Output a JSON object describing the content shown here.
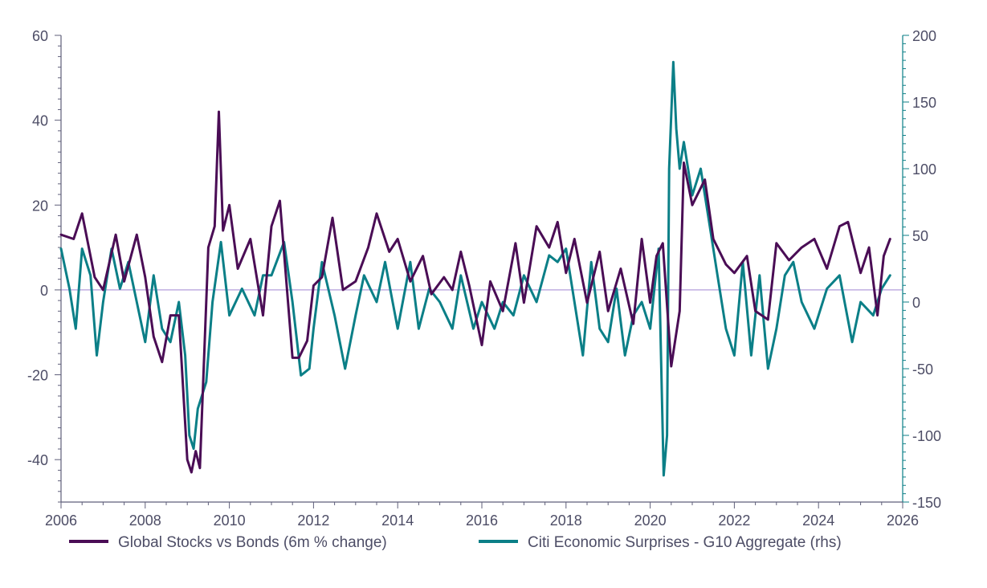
{
  "chart_data": {
    "type": "line",
    "title": "",
    "x_range": [
      2006,
      2026
    ],
    "x_ticks": [
      "2006",
      "2008",
      "2010",
      "2012",
      "2014",
      "2016",
      "2018",
      "2020",
      "2022",
      "2024",
      "2026"
    ],
    "y_left": {
      "range": [
        -50,
        60
      ],
      "ticks": [
        "60",
        "40",
        "20",
        "0",
        "-20",
        "-40"
      ]
    },
    "y_right": {
      "range": [
        -150,
        200
      ],
      "ticks": [
        "200",
        "150",
        "100",
        "50",
        "0",
        "-50",
        "-100",
        "-150"
      ]
    },
    "zero_line_color": "#b39ddb",
    "legend_position": "bottom",
    "series": [
      {
        "name": "Global Stocks vs Bonds (6m % change)",
        "axis": "left",
        "color": "#4a0d55",
        "x": [
          2006.0,
          2006.3,
          2006.5,
          2006.8,
          2007.0,
          2007.3,
          2007.5,
          2007.8,
          2008.0,
          2008.2,
          2008.4,
          2008.6,
          2008.8,
          2009.0,
          2009.1,
          2009.2,
          2009.3,
          2009.5,
          2009.65,
          2009.75,
          2009.85,
          2010.0,
          2010.2,
          2010.5,
          2010.8,
          2011.0,
          2011.2,
          2011.5,
          2011.65,
          2011.85,
          2012.0,
          2012.2,
          2012.45,
          2012.7,
          2013.0,
          2013.3,
          2013.5,
          2013.8,
          2014.0,
          2014.3,
          2014.6,
          2014.8,
          2015.1,
          2015.3,
          2015.5,
          2015.7,
          2016.0,
          2016.2,
          2016.5,
          2016.8,
          2017.0,
          2017.3,
          2017.6,
          2017.8,
          2018.0,
          2018.2,
          2018.5,
          2018.8,
          2019.0,
          2019.3,
          2019.6,
          2019.8,
          2020.0,
          2020.15,
          2020.3,
          2020.5,
          2020.7,
          2020.8,
          2021.0,
          2021.3,
          2021.5,
          2021.8,
          2022.0,
          2022.3,
          2022.5,
          2022.8,
          2023.0,
          2023.3,
          2023.6,
          2023.9,
          2024.2,
          2024.5,
          2024.7,
          2025.0,
          2025.2,
          2025.4,
          2025.55,
          2025.7
        ],
        "values": [
          13,
          12,
          18,
          3,
          0,
          13,
          2,
          13,
          3,
          -11,
          -17,
          -6,
          -6,
          -40,
          -43,
          -38,
          -42,
          10,
          15,
          42,
          14,
          20,
          5,
          12,
          -6,
          15,
          21,
          -16,
          -16,
          -12,
          1,
          3,
          17,
          0,
          2,
          10,
          18,
          9,
          12,
          2,
          8,
          -1,
          3,
          0,
          9,
          1,
          -13,
          2,
          -5,
          11,
          -3,
          15,
          10,
          16,
          4,
          12,
          -3,
          9,
          -5,
          5,
          -8,
          12,
          -3,
          8,
          11,
          -18,
          -5,
          30,
          20,
          26,
          12,
          6,
          4,
          8,
          -5,
          -7,
          11,
          7,
          10,
          12,
          5,
          15,
          16,
          4,
          10,
          -6,
          8,
          12
        ]
      },
      {
        "name": "Citi Economic Surprises - G10 Aggregate (rhs)",
        "axis": "right",
        "color": "#0b7f87",
        "x": [
          2006.0,
          2006.2,
          2006.35,
          2006.5,
          2006.7,
          2006.85,
          2007.0,
          2007.2,
          2007.4,
          2007.6,
          2007.8,
          2008.0,
          2008.2,
          2008.4,
          2008.6,
          2008.8,
          2008.95,
          2009.05,
          2009.15,
          2009.25,
          2009.45,
          2009.6,
          2009.8,
          2010.0,
          2010.3,
          2010.6,
          2010.8,
          2011.0,
          2011.3,
          2011.5,
          2011.7,
          2011.9,
          2012.0,
          2012.2,
          2012.5,
          2012.75,
          2013.0,
          2013.2,
          2013.5,
          2013.7,
          2014.0,
          2014.3,
          2014.5,
          2014.75,
          2015.0,
          2015.3,
          2015.5,
          2015.8,
          2016.0,
          2016.3,
          2016.5,
          2016.75,
          2017.0,
          2017.3,
          2017.6,
          2017.8,
          2018.0,
          2018.2,
          2018.4,
          2018.6,
          2018.8,
          2019.0,
          2019.2,
          2019.4,
          2019.6,
          2019.8,
          2020.0,
          2020.2,
          2020.32,
          2020.4,
          2020.45,
          2020.55,
          2020.62,
          2020.7,
          2020.8,
          2021.0,
          2021.2,
          2021.4,
          2021.6,
          2021.8,
          2022.0,
          2022.2,
          2022.4,
          2022.6,
          2022.8,
          2023.0,
          2023.2,
          2023.4,
          2023.6,
          2023.9,
          2024.2,
          2024.5,
          2024.8,
          2025.0,
          2025.3,
          2025.5,
          2025.7
        ],
        "values": [
          40,
          10,
          -20,
          40,
          20,
          -40,
          0,
          40,
          10,
          30,
          0,
          -30,
          20,
          -20,
          -30,
          0,
          -40,
          -100,
          -110,
          -80,
          -60,
          0,
          45,
          -10,
          10,
          -10,
          20,
          20,
          45,
          0,
          -55,
          -50,
          -20,
          30,
          -10,
          -50,
          -10,
          20,
          0,
          30,
          -20,
          30,
          -20,
          10,
          0,
          -20,
          20,
          -20,
          0,
          -20,
          0,
          -10,
          20,
          0,
          35,
          30,
          40,
          0,
          -40,
          30,
          -20,
          -30,
          10,
          -40,
          -10,
          0,
          -20,
          40,
          -130,
          -100,
          100,
          180,
          130,
          100,
          120,
          80,
          100,
          60,
          20,
          -20,
          -40,
          30,
          -40,
          20,
          -50,
          -20,
          20,
          30,
          0,
          -20,
          10,
          20,
          -30,
          0,
          -10,
          10,
          20
        ]
      }
    ]
  }
}
